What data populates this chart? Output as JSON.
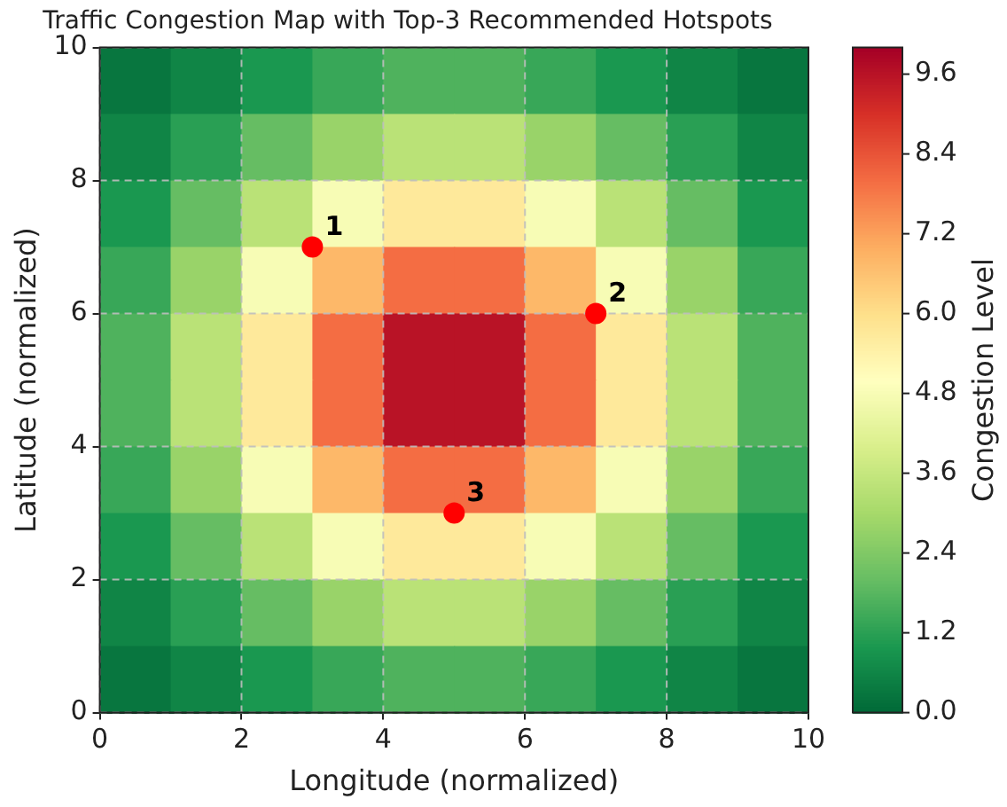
{
  "chart_data": {
    "type": "heatmap",
    "title": "Traffic Congestion Map with Top-3 Recommended Hotspots",
    "xlabel": "Longitude (normalized)",
    "ylabel": "Latitude (normalized)",
    "clabel": "Congestion Level",
    "xlim": [
      0,
      10
    ],
    "ylim": [
      0,
      10
    ],
    "xticks": [
      0,
      2,
      4,
      6,
      8,
      10
    ],
    "yticks": [
      0,
      2,
      4,
      6,
      8,
      10
    ],
    "cells": [
      [
        0.3,
        0.6,
        1.0,
        1.4,
        1.7,
        1.7,
        1.4,
        1.0,
        0.6,
        0.3
      ],
      [
        0.6,
        1.2,
        2.0,
        2.8,
        3.4,
        3.4,
        2.8,
        2.0,
        1.2,
        0.6
      ],
      [
        1.0,
        2.0,
        3.4,
        4.8,
        5.7,
        5.7,
        4.8,
        3.4,
        2.0,
        1.0
      ],
      [
        1.4,
        2.8,
        4.8,
        6.8,
        8.0,
        8.0,
        6.8,
        4.8,
        2.8,
        1.4
      ],
      [
        1.7,
        3.4,
        5.7,
        8.0,
        9.6,
        9.6,
        8.0,
        5.7,
        3.4,
        1.7
      ],
      [
        1.7,
        3.4,
        5.7,
        8.0,
        9.6,
        9.6,
        8.0,
        5.7,
        3.4,
        1.7
      ],
      [
        1.4,
        2.8,
        4.8,
        6.8,
        8.0,
        8.0,
        6.8,
        4.8,
        2.8,
        1.4
      ],
      [
        1.0,
        2.0,
        3.4,
        4.8,
        5.7,
        5.7,
        4.8,
        3.4,
        2.0,
        1.0
      ],
      [
        0.6,
        1.2,
        2.0,
        2.8,
        3.4,
        3.4,
        2.8,
        2.0,
        1.2,
        0.6
      ],
      [
        0.3,
        0.6,
        1.0,
        1.4,
        1.7,
        1.7,
        1.4,
        1.0,
        0.6,
        0.3
      ]
    ],
    "clim": [
      0,
      10
    ],
    "cticks": [
      {
        "value": 0,
        "label": "0.0"
      },
      1.2,
      2.4,
      3.6,
      4.8,
      {
        "value": 6,
        "label": "6.0"
      },
      7.2,
      8.4,
      9.6
    ],
    "series": [
      {
        "type": "scatter",
        "color": "#ff0000",
        "x": [
          3,
          7,
          5
        ],
        "values": [
          7,
          6,
          3
        ]
      }
    ],
    "annotations": [
      {
        "text": "1",
        "x": 3,
        "y": 7
      },
      {
        "text": "2",
        "x": 7,
        "y": 6
      },
      {
        "text": "3",
        "x": 5,
        "y": 3
      }
    ],
    "marker": "circle",
    "grid": true
  }
}
